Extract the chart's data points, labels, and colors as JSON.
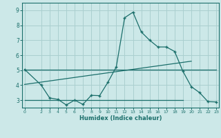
{
  "xlabel": "Humidex (Indice chaleur)",
  "bg_color": "#cce8e8",
  "grid_color": "#aacfcf",
  "line_color": "#1a6e6a",
  "x_ticks": [
    0,
    2,
    3,
    4,
    5,
    6,
    7,
    8,
    9,
    10,
    11,
    12,
    13,
    14,
    15,
    16,
    17,
    18,
    19,
    20,
    21,
    22,
    23
  ],
  "x_tick_labels": [
    "0",
    "2",
    "3",
    "4",
    "5",
    "6",
    "7",
    "8",
    "9",
    "10",
    "11",
    "12",
    "13",
    "14",
    "15",
    "16",
    "17",
    "18",
    "19",
    "20",
    "21",
    "22",
    "23"
  ],
  "ylim": [
    2.5,
    9.5
  ],
  "xlim": [
    -0.3,
    23.3
  ],
  "yticks": [
    3,
    4,
    5,
    6,
    7,
    8,
    9
  ],
  "ytick_labels": [
    "3",
    "4",
    "5",
    "6",
    "7",
    "8",
    "9"
  ],
  "line1_x": [
    0,
    2,
    3,
    4,
    5,
    6,
    7,
    8,
    9,
    10,
    11,
    12,
    13,
    14,
    15,
    16,
    17,
    18,
    19,
    20,
    21,
    22,
    23
  ],
  "line1_y": [
    5.05,
    4.0,
    3.15,
    3.05,
    2.68,
    3.0,
    2.72,
    3.32,
    3.3,
    4.2,
    5.22,
    8.5,
    8.87,
    7.55,
    7.0,
    6.55,
    6.55,
    6.25,
    4.92,
    3.9,
    3.5,
    2.9,
    2.88
  ],
  "line2_x": [
    0,
    23
  ],
  "line2_y": [
    5.05,
    5.05
  ],
  "line3_x": [
    0,
    19
  ],
  "line3_y": [
    3.0,
    3.0
  ],
  "line4_x": [
    0,
    20
  ],
  "line4_y": [
    4.05,
    5.6
  ]
}
